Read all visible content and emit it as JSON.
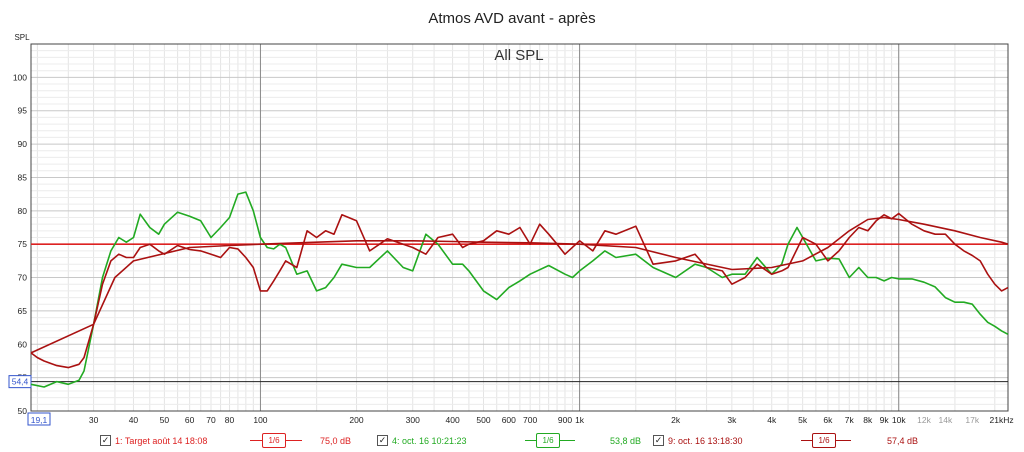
{
  "title": "Atmos AVD avant - après",
  "chart_data": {
    "type": "line",
    "title": "Atmos AVD avant - après",
    "subtitle": "All SPL",
    "ylabel": "SPL",
    "x_scale": "log",
    "xlim": [
      19.1,
      22000
    ],
    "ylim": [
      50,
      105
    ],
    "y_ticks": [
      50,
      55,
      60,
      65,
      70,
      75,
      80,
      85,
      90,
      95,
      100
    ],
    "x_ticks": [
      {
        "v": 30,
        "t": "30"
      },
      {
        "v": 40,
        "t": "40"
      },
      {
        "v": 50,
        "t": "50"
      },
      {
        "v": 60,
        "t": "60"
      },
      {
        "v": 70,
        "t": "70"
      },
      {
        "v": 80,
        "t": "80"
      },
      {
        "v": 100,
        "t": "100"
      },
      {
        "v": 200,
        "t": "200"
      },
      {
        "v": 300,
        "t": "300"
      },
      {
        "v": 400,
        "t": "400"
      },
      {
        "v": 500,
        "t": "500"
      },
      {
        "v": 600,
        "t": "600"
      },
      {
        "v": 700,
        "t": "700"
      },
      {
        "v": 900,
        "t": "900"
      },
      {
        "v": 1000,
        "t": "1k"
      },
      {
        "v": 2000,
        "t": "2k"
      },
      {
        "v": 3000,
        "t": "3k"
      },
      {
        "v": 4000,
        "t": "4k"
      },
      {
        "v": 5000,
        "t": "5k"
      },
      {
        "v": 6000,
        "t": "6k"
      },
      {
        "v": 7000,
        "t": "7k"
      },
      {
        "v": 8000,
        "t": "8k"
      },
      {
        "v": 9000,
        "t": "9k"
      },
      {
        "v": 10000,
        "t": "10k"
      },
      {
        "v": 12000,
        "t": "12k"
      },
      {
        "v": 14000,
        "t": "14k"
      },
      {
        "v": 17000,
        "t": "17k"
      },
      {
        "v": 21000,
        "t": "21kHz"
      }
    ],
    "x_min_label": "19,1",
    "ref_level": {
      "value": 54.4,
      "label": "54,4"
    },
    "grid": true,
    "series": [
      {
        "name": "1: Target août 14 18:08",
        "color": "#dd2222",
        "x": [
          19.1,
          22000
        ],
        "y": [
          75,
          75
        ]
      },
      {
        "name": "4: oct. 16 10:21:23",
        "color": "#22aa22",
        "x": [
          19.1,
          21,
          23,
          25,
          27,
          28,
          30,
          32,
          34,
          36,
          38,
          40,
          42,
          45,
          48,
          50,
          55,
          60,
          65,
          70,
          75,
          80,
          85,
          90,
          95,
          100,
          105,
          110,
          115,
          120,
          130,
          140,
          150,
          160,
          170,
          180,
          200,
          220,
          250,
          280,
          300,
          330,
          360,
          400,
          430,
          450,
          500,
          550,
          600,
          650,
          700,
          800,
          900,
          950,
          1000,
          1100,
          1200,
          1300,
          1500,
          1700,
          2000,
          2300,
          2500,
          2800,
          3000,
          3300,
          3600,
          4000,
          4300,
          4500,
          4800,
          5000,
          5500,
          6000,
          6500,
          7000,
          7500,
          8000,
          8500,
          9000,
          9500,
          10000,
          11000,
          12000,
          13000,
          14000,
          15000,
          16000,
          17000,
          18000,
          19000,
          20000,
          21000,
          22000
        ],
        "y": [
          54.0,
          53.6,
          54.4,
          54.0,
          54.6,
          56,
          63,
          70,
          74,
          76,
          75.3,
          76,
          79.5,
          77.5,
          76.5,
          78,
          79.8,
          79.2,
          78.5,
          76,
          77.5,
          79,
          82.5,
          82.8,
          80,
          76,
          74.5,
          74.3,
          75,
          74.5,
          70.5,
          71,
          68,
          68.5,
          70,
          72,
          71.5,
          71.5,
          74,
          71.5,
          71,
          76.5,
          75,
          72,
          72,
          71,
          68,
          66.7,
          68.5,
          69.5,
          70.5,
          71.8,
          70.5,
          70,
          71,
          72.5,
          74,
          73,
          73.5,
          71.5,
          70,
          72,
          71.5,
          70,
          70.5,
          70.5,
          73,
          70.5,
          72,
          75,
          77.5,
          76,
          72.5,
          72.9,
          72.8,
          70,
          71.5,
          70,
          70,
          69.5,
          70,
          69.8,
          69.8,
          69.3,
          68.6,
          67,
          66.3,
          66.3,
          66,
          64.5,
          63.3,
          62.7,
          62,
          61.5
        ]
      },
      {
        "name": "9: oct. 16 13:18:30",
        "color": "#aa1111",
        "x": [
          19.1,
          20,
          21,
          23,
          25,
          27,
          28,
          30,
          32,
          34,
          36,
          38,
          40,
          42,
          45,
          48,
          50,
          55,
          60,
          65,
          70,
          75,
          80,
          85,
          90,
          95,
          100,
          105,
          110,
          115,
          120,
          130,
          140,
          150,
          160,
          170,
          180,
          200,
          220,
          250,
          280,
          300,
          330,
          360,
          400,
          430,
          450,
          500,
          550,
          600,
          650,
          700,
          750,
          800,
          850,
          900,
          1000,
          1100,
          1200,
          1300,
          1500,
          1700,
          2000,
          2300,
          2500,
          2800,
          3000,
          3300,
          3600,
          4000,
          4300,
          4500,
          5000,
          5500,
          6000,
          6500,
          7000,
          7500,
          8000,
          8500,
          9000,
          9500,
          10000,
          11000,
          12000,
          13000,
          14000,
          15000,
          16000,
          17000,
          18000,
          19000,
          20000,
          21000,
          22000
        ],
        "y": [
          58.7,
          58,
          57.5,
          56.8,
          56.5,
          57,
          58,
          63,
          69,
          72.5,
          73.5,
          73,
          73,
          74.5,
          75,
          74,
          73.5,
          74.8,
          74.2,
          74,
          73.5,
          73,
          74.5,
          74.3,
          73,
          71.5,
          68,
          68,
          69.5,
          71,
          72.5,
          71.5,
          77,
          76,
          77,
          76.5,
          79.4,
          78.5,
          74,
          75.8,
          75,
          74.5,
          73.5,
          76,
          76.5,
          74.5,
          75,
          75.5,
          77,
          76.5,
          77.5,
          75,
          78,
          76.5,
          75,
          73.5,
          75.5,
          74,
          77,
          76.5,
          77.7,
          72,
          72.5,
          73.5,
          71.5,
          71,
          69,
          70,
          72,
          70.5,
          71,
          71.5,
          76,
          75,
          72.5,
          74,
          76,
          77.5,
          77,
          78.5,
          79.4,
          78.8,
          79.6,
          78,
          77,
          76.5,
          76.5,
          75,
          74,
          73.3,
          72.5,
          70.5,
          69,
          68,
          68.5
        ]
      },
      {
        "name": "",
        "color": "#aa1111",
        "x": [
          19.1,
          30,
          35,
          40,
          60,
          80,
          100,
          150,
          200,
          300,
          400,
          500,
          700,
          1000,
          1500,
          2000,
          3000,
          4000,
          5000,
          6000,
          7000,
          8000,
          9000,
          10000,
          12000,
          15000,
          18000,
          21000,
          22000
        ],
        "y": [
          58.7,
          63,
          70,
          72.5,
          74.5,
          74.8,
          75,
          75.3,
          75.5,
          75.5,
          75.4,
          75.3,
          75.2,
          75,
          74.5,
          73,
          71.2,
          71.5,
          72.5,
          74.5,
          77,
          78.7,
          79,
          78.7,
          78,
          77,
          76,
          75.3,
          75
        ]
      }
    ],
    "legend": [
      {
        "checked": "✓",
        "label": "1: Target août 14 18:08",
        "smoothing": "1/6",
        "level": "75,0 dB",
        "color": "#dd2222"
      },
      {
        "checked": "✓",
        "label": "4: oct. 16 10:21:23",
        "smoothing": "1/6",
        "level": "53,8 dB",
        "color": "#22aa22"
      },
      {
        "checked": "✓",
        "label": "9: oct. 16 13:18:30",
        "smoothing": "1/6",
        "level": "57,4 dB",
        "color": "#aa1111"
      }
    ]
  }
}
